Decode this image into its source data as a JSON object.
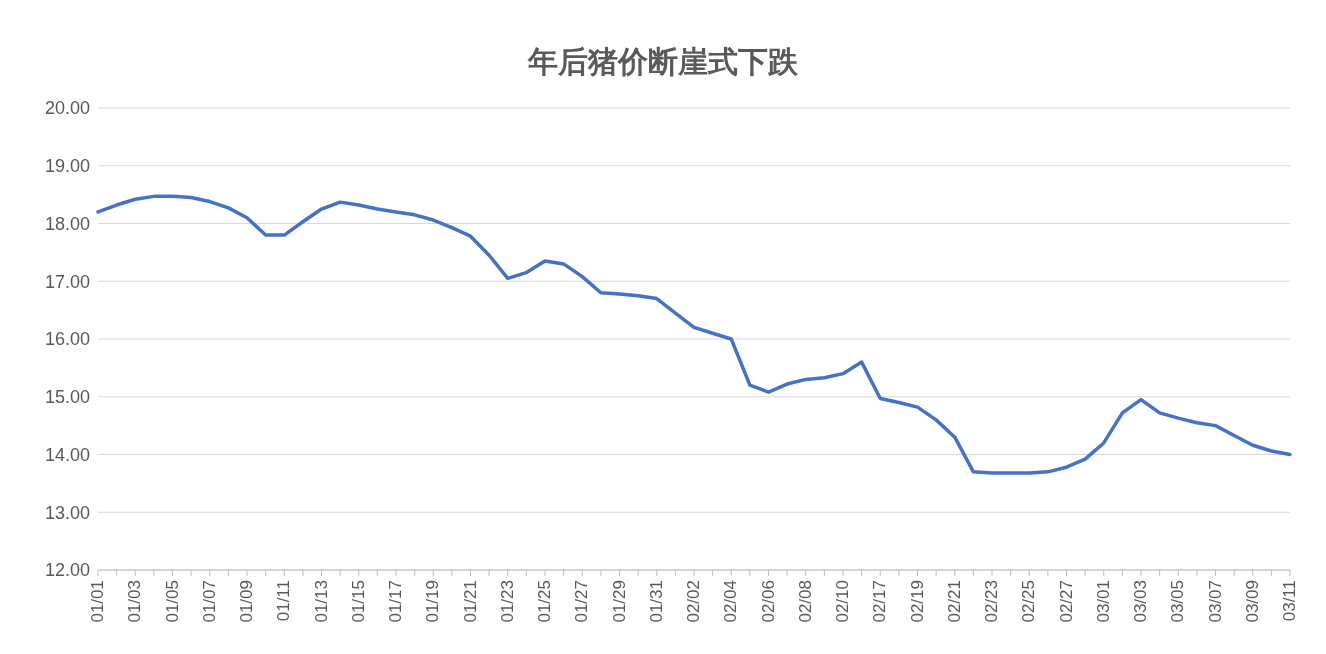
{
  "chart_data": {
    "type": "line",
    "title": "年后猪价断崖式下跌",
    "categories": [
      "01/01",
      null,
      "01/03",
      null,
      "01/05",
      null,
      "01/07",
      null,
      "01/09",
      null,
      "01/11",
      null,
      "01/13",
      null,
      "01/15",
      null,
      "01/17",
      null,
      "01/19",
      null,
      "01/21",
      null,
      "01/23",
      null,
      "01/25",
      null,
      "01/27",
      null,
      "01/29",
      null,
      "01/31",
      null,
      "02/02",
      null,
      "02/04",
      null,
      "02/06",
      null,
      "02/08",
      null,
      "02/10",
      null,
      "02/17",
      null,
      "02/19",
      null,
      "02/21",
      null,
      "02/23",
      null,
      "02/25",
      null,
      "02/27",
      null,
      "03/01",
      null,
      "03/03",
      null,
      "03/05",
      null,
      "03/07",
      null,
      "03/09",
      null,
      "03/11"
    ],
    "series": [
      {
        "color": "#4472c4",
        "values": [
          18.2,
          18.32,
          18.42,
          18.47,
          18.47,
          18.45,
          18.38,
          18.27,
          18.1,
          17.8,
          17.8,
          18.03,
          18.25,
          18.37,
          18.32,
          18.25,
          18.2,
          18.15,
          18.06,
          17.93,
          17.78,
          17.45,
          17.05,
          17.15,
          17.35,
          17.3,
          17.08,
          16.8,
          16.78,
          16.75,
          16.7,
          16.45,
          16.2,
          16.1,
          16.0,
          15.2,
          15.08,
          15.22,
          15.3,
          15.33,
          15.4,
          15.6,
          14.97,
          14.9,
          14.82,
          14.6,
          14.3,
          13.7,
          13.68,
          13.68,
          13.68,
          13.7,
          13.78,
          13.92,
          14.2,
          14.72,
          14.95,
          14.72,
          14.63,
          14.55,
          14.5,
          14.33,
          14.16,
          14.06,
          14.0
        ]
      }
    ],
    "ylim": [
      12,
      20
    ],
    "yticks": [
      {
        "value": 12,
        "label": "12.00"
      },
      {
        "value": 13,
        "label": "13.00"
      },
      {
        "value": 14,
        "label": "14.00"
      },
      {
        "value": 15,
        "label": "15.00"
      },
      {
        "value": 16,
        "label": "16.00"
      },
      {
        "value": 17,
        "label": "17.00"
      },
      {
        "value": 18,
        "label": "18.00"
      },
      {
        "value": 19,
        "label": "19.00"
      },
      {
        "value": 20,
        "label": "20.00"
      }
    ],
    "grid": "y",
    "legend": false,
    "marker": "none",
    "line_style": "solid"
  }
}
